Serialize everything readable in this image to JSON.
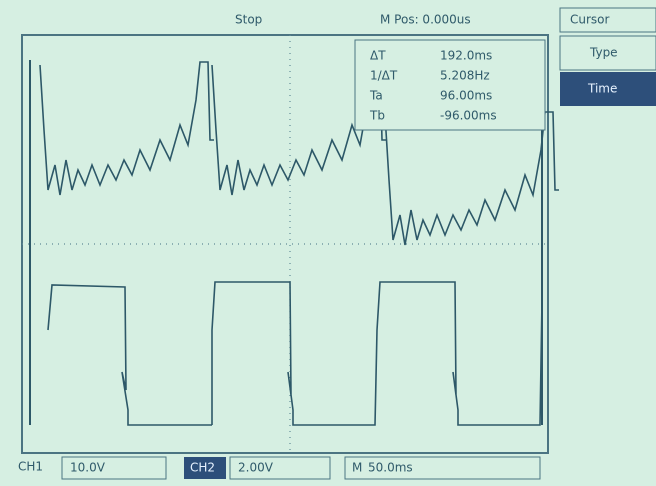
{
  "status": "Stop",
  "position": "M Pos: 0.000us",
  "menu": {
    "title": "Cursor",
    "type_label": "Type",
    "type_value": "Time"
  },
  "readout": [
    {
      "label": "ΔT",
      "value": "192.0ms"
    },
    {
      "label": "1/ΔT",
      "value": "5.208Hz"
    },
    {
      "label": "Ta",
      "value": "96.00ms"
    },
    {
      "label": "Tb",
      "value": "-96.00ms"
    }
  ],
  "footer": {
    "ch1": "CH1",
    "ch1_scale": "10.0V",
    "ch2": "CH2",
    "ch2_scale": "2.00V",
    "timebase_label": "M",
    "timebase": "50.0ms"
  }
}
